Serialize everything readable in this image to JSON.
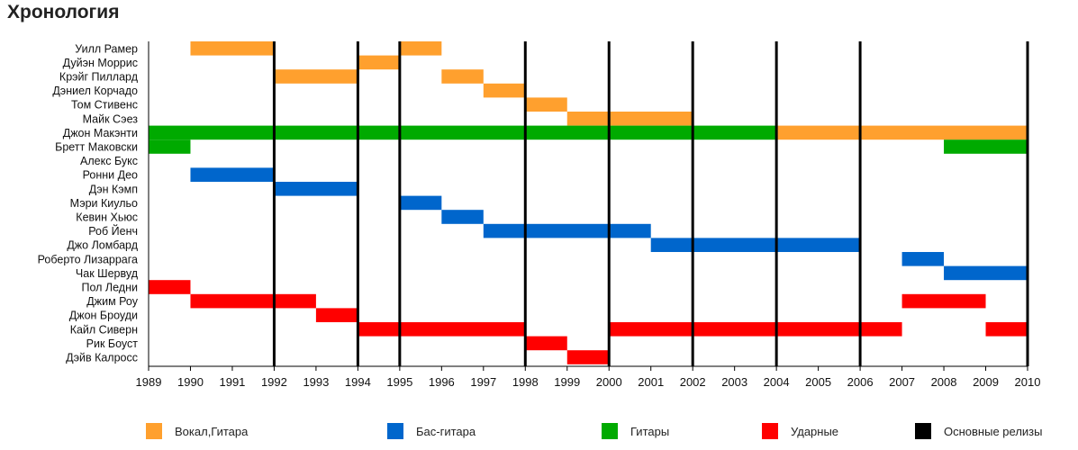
{
  "heading": "Хронология",
  "chart_data": {
    "type": "timeline",
    "x_range": [
      1989,
      2010
    ],
    "x_ticks": [
      1989,
      1990,
      1991,
      1992,
      1993,
      1994,
      1995,
      1996,
      1997,
      1998,
      1999,
      2000,
      2001,
      2002,
      2003,
      2004,
      2005,
      2006,
      2007,
      2008,
      2009,
      2010
    ],
    "release_years": [
      1992,
      1994,
      1995,
      1998,
      2000,
      2002,
      2004,
      2006,
      2010
    ],
    "roles": {
      "vocals": {
        "label": "Вокал,Гитара",
        "color": "#ffa02e"
      },
      "bass": {
        "label": "Бас-гитара",
        "color": "#0066cc"
      },
      "guitar": {
        "label": "Гитары",
        "color": "#00aa00"
      },
      "drums": {
        "label": "Ударные",
        "color": "#ff0000"
      },
      "releases": {
        "label": "Основные релизы",
        "color": "#000000"
      }
    },
    "members": [
      {
        "name": "Уилл Рамер",
        "spans": [
          {
            "role": "vocals",
            "start": 1990,
            "end": 1992
          },
          {
            "role": "vocals",
            "start": 1995,
            "end": 1996
          }
        ]
      },
      {
        "name": "Дуйэн Моррис",
        "spans": [
          {
            "role": "vocals",
            "start": 1994,
            "end": 1995
          }
        ]
      },
      {
        "name": "Крэйг Пиллард",
        "spans": [
          {
            "role": "vocals",
            "start": 1992,
            "end": 1994
          },
          {
            "role": "vocals",
            "start": 1996,
            "end": 1997
          }
        ]
      },
      {
        "name": "Дэниел Корчадо",
        "spans": [
          {
            "role": "vocals",
            "start": 1997,
            "end": 1998
          }
        ]
      },
      {
        "name": "Том Стивенс",
        "spans": [
          {
            "role": "vocals",
            "start": 1998,
            "end": 1999
          }
        ]
      },
      {
        "name": "Майк Сэез",
        "spans": [
          {
            "role": "vocals",
            "start": 1999,
            "end": 2002
          }
        ]
      },
      {
        "name": "Джон Макэнти",
        "spans": [
          {
            "role": "guitar",
            "start": 1989,
            "end": 2004
          },
          {
            "role": "vocals",
            "start": 2004,
            "end": 2010
          }
        ]
      },
      {
        "name": "Бретт Маковски",
        "spans": [
          {
            "role": "guitar",
            "start": 1989,
            "end": 1990
          },
          {
            "role": "guitar",
            "start": 2008,
            "end": 2010
          }
        ]
      },
      {
        "name": "Алекс Букс",
        "spans": []
      },
      {
        "name": "Ронни Део",
        "spans": [
          {
            "role": "bass",
            "start": 1990,
            "end": 1992
          }
        ]
      },
      {
        "name": "Дэн Кэмп",
        "spans": [
          {
            "role": "bass",
            "start": 1992,
            "end": 1994
          }
        ]
      },
      {
        "name": "Мэри Киульо",
        "spans": [
          {
            "role": "bass",
            "start": 1995,
            "end": 1996
          }
        ]
      },
      {
        "name": "Кевин Хьюс",
        "spans": [
          {
            "role": "bass",
            "start": 1996,
            "end": 1997
          }
        ]
      },
      {
        "name": "Роб Йенч",
        "spans": [
          {
            "role": "bass",
            "start": 1997,
            "end": 2001
          }
        ]
      },
      {
        "name": "Джо Ломбард",
        "spans": [
          {
            "role": "bass",
            "start": 2001,
            "end": 2006
          }
        ]
      },
      {
        "name": "Роберто Лизаррага",
        "spans": [
          {
            "role": "bass",
            "start": 2007,
            "end": 2008
          }
        ]
      },
      {
        "name": "Чак Шервуд",
        "spans": [
          {
            "role": "bass",
            "start": 2008,
            "end": 2010
          }
        ]
      },
      {
        "name": "Пол Ледни",
        "spans": [
          {
            "role": "drums",
            "start": 1989,
            "end": 1990
          }
        ]
      },
      {
        "name": "Джим Роу",
        "spans": [
          {
            "role": "drums",
            "start": 1990,
            "end": 1993
          },
          {
            "role": "drums",
            "start": 2007,
            "end": 2009
          }
        ]
      },
      {
        "name": "Джон Броуди",
        "spans": [
          {
            "role": "drums",
            "start": 1993,
            "end": 1994
          }
        ]
      },
      {
        "name": "Кайл Сиверн",
        "spans": [
          {
            "role": "drums",
            "start": 1994,
            "end": 1998
          },
          {
            "role": "drums",
            "start": 2000,
            "end": 2007
          },
          {
            "role": "drums",
            "start": 2009,
            "end": 2010
          }
        ]
      },
      {
        "name": "Рик Боуст",
        "spans": [
          {
            "role": "drums",
            "start": 1998,
            "end": 1999
          }
        ]
      },
      {
        "name": "Дэйв Калросс",
        "spans": [
          {
            "role": "drums",
            "start": 1999,
            "end": 2000
          }
        ]
      }
    ],
    "legend_order": [
      "vocals",
      "bass",
      "guitar",
      "drums",
      "releases"
    ]
  }
}
